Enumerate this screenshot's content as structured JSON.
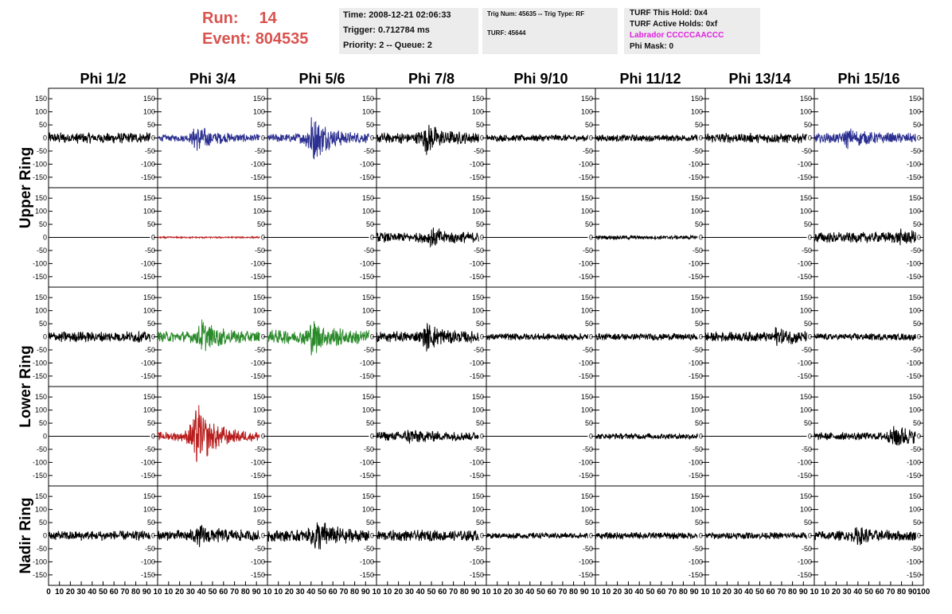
{
  "header": {
    "run_label": "Run:",
    "run_value": "14",
    "event_label": "Event:",
    "event_value": "804535"
  },
  "info_boxes": {
    "time": "Time: 2008-12-21 02:06:33",
    "trigger": "Trigger: 0.712784 ms",
    "priority": "Priority: 2 -- Queue: 2",
    "trig_num": "Trig Num: 45635 -- Trig Type: RF",
    "turf": "TURF: 45644",
    "turf_this_hold": "TURF This Hold: 0x4",
    "turf_active_holds": "TURF Active Holds: 0xf",
    "labrador": "Labrador CCCCCAACCC",
    "phi_mask": "Phi Mask: 0"
  },
  "colors": {
    "header_red": "#d9534f",
    "labrador_magenta": "#e020e0",
    "trace_black": "#000000",
    "trace_blue": "#2b2f8f",
    "trace_red": "#b81c1c",
    "trace_green": "#2a8a2a",
    "info_bg": "#ececec"
  },
  "chart_data": {
    "type": "line",
    "columns": [
      "Phi 1/2",
      "Phi 3/4",
      "Phi 5/6",
      "Phi 7/8",
      "Phi 9/10",
      "Phi 11/12",
      "Phi 13/14",
      "Phi 15/16"
    ],
    "ring_labels": [
      "Upper Ring",
      "Lower Ring",
      "Nadir Ring"
    ],
    "ylim": [
      -190,
      190
    ],
    "y_ticks": [
      -150,
      -100,
      -50,
      0,
      50,
      100,
      150
    ],
    "y_tick_labels": [
      "-150",
      "-100",
      "-50",
      "0",
      "50",
      "100",
      "150"
    ],
    "xlim": [
      0,
      100
    ],
    "x_ticks": [
      0,
      10,
      20,
      30,
      40,
      50,
      60,
      70,
      80,
      90,
      100
    ],
    "x_tick_labels_first": [
      "0",
      "10",
      "20",
      "30",
      "40",
      "50",
      "60",
      "70",
      "80",
      "90",
      "10"
    ],
    "x_tick_labels_mid": [
      "10",
      "20",
      "30",
      "40",
      "50",
      "60",
      "70",
      "80",
      "90",
      "10"
    ],
    "x_tick_labels_last": [
      "10",
      "20",
      "30",
      "40",
      "50",
      "60",
      "70",
      "80",
      "90",
      "100"
    ],
    "x_max": 93,
    "traces": [
      [
        {
          "color": "black",
          "amp": 22,
          "burst": 0,
          "burstAt": 40
        },
        {
          "color": "blue",
          "amp": 14,
          "burst": 55,
          "burstAt": 35
        },
        {
          "color": "blue",
          "amp": 18,
          "burst": 95,
          "burstAt": 40
        },
        {
          "color": "black",
          "amp": 22,
          "burst": 45,
          "burstAt": 45
        },
        {
          "color": "black",
          "amp": 14,
          "burst": 0,
          "burstAt": 40
        },
        {
          "color": "black",
          "amp": 14,
          "burst": 0,
          "burstAt": 40
        },
        {
          "color": "black",
          "amp": 20,
          "burst": 0,
          "burstAt": 40
        },
        {
          "color": "blue",
          "amp": 20,
          "burst": 25,
          "burstAt": 30
        }
      ],
      [
        {
          "color": "flat",
          "amp": 0,
          "burst": 0,
          "burstAt": 40
        },
        {
          "color": "red",
          "amp": 3,
          "burst": 0,
          "burstAt": 40
        },
        {
          "color": "flat",
          "amp": 0,
          "burst": 0,
          "burstAt": 40
        },
        {
          "color": "black",
          "amp": 20,
          "burst": 25,
          "burstAt": 50
        },
        {
          "color": "flat",
          "amp": 0,
          "burst": 0,
          "burstAt": 40
        },
        {
          "color": "black",
          "amp": 8,
          "burst": 0,
          "burstAt": 40
        },
        {
          "color": "flat",
          "amp": 0,
          "burst": 0,
          "burstAt": 40
        },
        {
          "color": "black",
          "amp": 22,
          "burst": 15,
          "burstAt": 80
        }
      ],
      [
        {
          "color": "black",
          "amp": 22,
          "burst": 0,
          "burstAt": 40
        },
        {
          "color": "green",
          "amp": 22,
          "burst": 55,
          "burstAt": 40
        },
        {
          "color": "green",
          "amp": 28,
          "burst": 55,
          "burstAt": 40
        },
        {
          "color": "black",
          "amp": 22,
          "burst": 40,
          "burstAt": 45
        },
        {
          "color": "black",
          "amp": 14,
          "burst": 0,
          "burstAt": 40
        },
        {
          "color": "black",
          "amp": 14,
          "burst": 0,
          "burstAt": 40
        },
        {
          "color": "black",
          "amp": 20,
          "burst": 25,
          "burstAt": 65
        },
        {
          "color": "black",
          "amp": 14,
          "burst": 0,
          "burstAt": 40
        }
      ],
      [
        {
          "color": "flat",
          "amp": 0,
          "burst": 0,
          "burstAt": 40
        },
        {
          "color": "red",
          "amp": 18,
          "burst": 140,
          "burstAt": 34
        },
        {
          "color": "flat",
          "amp": 0,
          "burst": 0,
          "burstAt": 40
        },
        {
          "color": "black",
          "amp": 18,
          "burst": 20,
          "burstAt": 28
        },
        {
          "color": "flat",
          "amp": 0,
          "burst": 0,
          "burstAt": 40
        },
        {
          "color": "black",
          "amp": 12,
          "burst": 0,
          "burstAt": 40
        },
        {
          "color": "flat",
          "amp": 0,
          "burst": 0,
          "burstAt": 40
        },
        {
          "color": "black",
          "amp": 16,
          "burst": 45,
          "burstAt": 73
        }
      ],
      [
        {
          "color": "black",
          "amp": 20,
          "burst": 0,
          "burstAt": 40
        },
        {
          "color": "black",
          "amp": 22,
          "burst": 30,
          "burstAt": 38
        },
        {
          "color": "black",
          "amp": 24,
          "burst": 55,
          "burstAt": 44
        },
        {
          "color": "black",
          "amp": 22,
          "burst": 0,
          "burstAt": 40
        },
        {
          "color": "black",
          "amp": 12,
          "burst": 0,
          "burstAt": 40
        },
        {
          "color": "black",
          "amp": 14,
          "burst": 0,
          "burstAt": 40
        },
        {
          "color": "black",
          "amp": 14,
          "burst": 0,
          "burstAt": 40
        },
        {
          "color": "black",
          "amp": 20,
          "burst": 25,
          "burstAt": 40
        }
      ]
    ]
  }
}
